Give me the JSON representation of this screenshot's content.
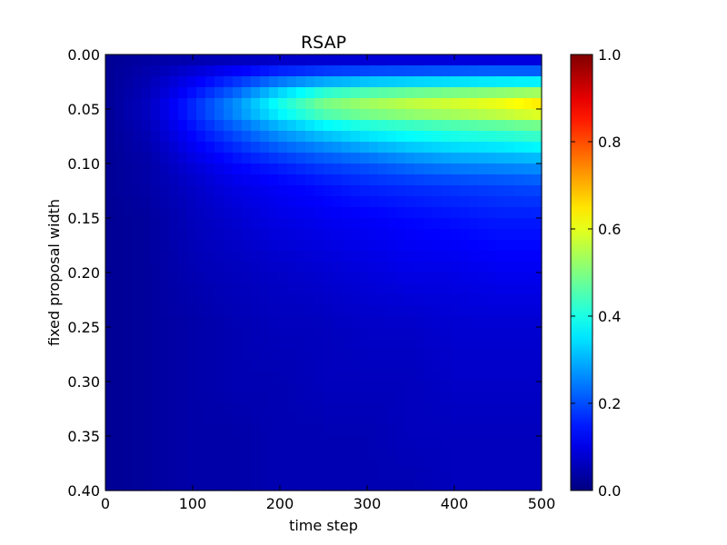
{
  "chart_data": {
    "type": "heatmap",
    "title": "RSAP",
    "xlabel": "time step",
    "ylabel": "fixed proposal width",
    "xlim": [
      0,
      500
    ],
    "ylim": [
      0.0,
      0.4
    ],
    "y_inverted": true,
    "x_ticks": [
      "0",
      "100",
      "200",
      "300",
      "400",
      "500"
    ],
    "y_ticks": [
      "0.00",
      "0.05",
      "0.10",
      "0.15",
      "0.20",
      "0.25",
      "0.30",
      "0.35",
      "0.40"
    ],
    "colorbar": {
      "colormap": "jet",
      "range": [
        0.0,
        1.0
      ],
      "ticks": [
        "0.0",
        "0.2",
        "0.4",
        "0.6",
        "0.8",
        "1.0"
      ]
    },
    "x_columns": [
      0,
      50,
      100,
      150,
      200,
      250,
      300,
      350,
      400,
      450,
      500
    ],
    "y_rows": [
      0.0,
      0.02,
      0.04,
      0.05,
      0.06,
      0.08,
      0.1,
      0.12,
      0.15,
      0.2,
      0.25,
      0.3,
      0.35,
      0.4
    ],
    "values": [
      [
        0.02,
        0.03,
        0.03,
        0.03,
        0.03,
        0.03,
        0.03,
        0.03,
        0.03,
        0.03,
        0.03
      ],
      [
        0.02,
        0.05,
        0.1,
        0.15,
        0.2,
        0.23,
        0.25,
        0.26,
        0.27,
        0.28,
        0.28
      ],
      [
        0.02,
        0.06,
        0.15,
        0.25,
        0.38,
        0.48,
        0.52,
        0.55,
        0.57,
        0.59,
        0.62
      ],
      [
        0.02,
        0.07,
        0.17,
        0.28,
        0.4,
        0.5,
        0.54,
        0.57,
        0.59,
        0.62,
        0.67
      ],
      [
        0.02,
        0.06,
        0.15,
        0.24,
        0.33,
        0.4,
        0.44,
        0.46,
        0.48,
        0.5,
        0.52
      ],
      [
        0.02,
        0.05,
        0.12,
        0.18,
        0.24,
        0.28,
        0.32,
        0.35,
        0.37,
        0.38,
        0.4
      ],
      [
        0.02,
        0.04,
        0.09,
        0.13,
        0.16,
        0.19,
        0.21,
        0.24,
        0.26,
        0.27,
        0.28
      ],
      [
        0.02,
        0.04,
        0.07,
        0.1,
        0.12,
        0.14,
        0.16,
        0.17,
        0.18,
        0.19,
        0.2
      ],
      [
        0.02,
        0.03,
        0.06,
        0.08,
        0.1,
        0.11,
        0.12,
        0.13,
        0.14,
        0.15,
        0.15
      ],
      [
        0.02,
        0.03,
        0.05,
        0.06,
        0.07,
        0.08,
        0.09,
        0.1,
        0.1,
        0.11,
        0.11
      ],
      [
        0.02,
        0.03,
        0.04,
        0.05,
        0.06,
        0.06,
        0.07,
        0.07,
        0.08,
        0.08,
        0.08
      ],
      [
        0.02,
        0.03,
        0.04,
        0.05,
        0.05,
        0.06,
        0.06,
        0.06,
        0.07,
        0.07,
        0.07
      ],
      [
        0.02,
        0.03,
        0.04,
        0.04,
        0.05,
        0.05,
        0.05,
        0.06,
        0.06,
        0.06,
        0.06
      ],
      [
        0.02,
        0.03,
        0.04,
        0.04,
        0.05,
        0.05,
        0.05,
        0.05,
        0.06,
        0.06,
        0.06
      ]
    ]
  }
}
